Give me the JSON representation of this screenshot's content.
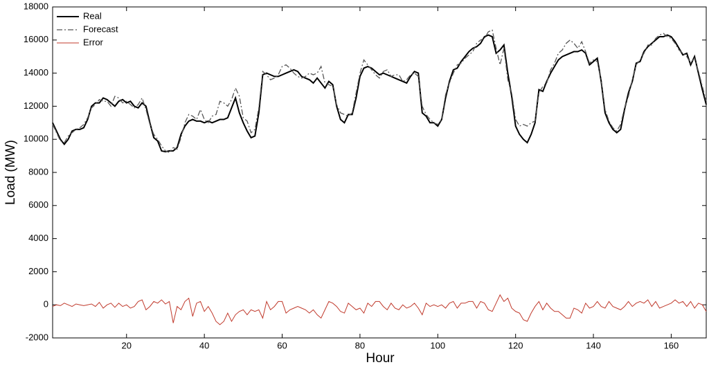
{
  "chart_data": {
    "type": "line",
    "x_label": "Hour",
    "y_label": "Load (MW)",
    "xlim": [
      1,
      169
    ],
    "xticks": [
      20,
      40,
      60,
      80,
      100,
      120,
      140,
      160
    ],
    "ylim": [
      -2000,
      18000
    ],
    "yticks": [
      -2000,
      0,
      2000,
      4000,
      6000,
      8000,
      10000,
      12000,
      14000,
      16000,
      18000
    ],
    "grid": false,
    "legend": "upper left",
    "x": [
      1,
      2,
      3,
      4,
      5,
      6,
      7,
      8,
      9,
      10,
      11,
      12,
      13,
      14,
      15,
      16,
      17,
      18,
      19,
      20,
      21,
      22,
      23,
      24,
      25,
      26,
      27,
      28,
      29,
      30,
      31,
      32,
      33,
      34,
      35,
      36,
      37,
      38,
      39,
      40,
      41,
      42,
      43,
      44,
      45,
      46,
      47,
      48,
      49,
      50,
      51,
      52,
      53,
      54,
      55,
      56,
      57,
      58,
      59,
      60,
      61,
      62,
      63,
      64,
      65,
      66,
      67,
      68,
      69,
      70,
      71,
      72,
      73,
      74,
      75,
      76,
      77,
      78,
      79,
      80,
      81,
      82,
      83,
      84,
      85,
      86,
      87,
      88,
      89,
      90,
      91,
      92,
      93,
      94,
      95,
      96,
      97,
      98,
      99,
      100,
      101,
      102,
      103,
      104,
      105,
      106,
      107,
      108,
      109,
      110,
      111,
      112,
      113,
      114,
      115,
      116,
      117,
      118,
      119,
      120,
      121,
      122,
      123,
      124,
      125,
      126,
      127,
      128,
      129,
      130,
      131,
      132,
      133,
      134,
      135,
      136,
      137,
      138,
      139,
      140,
      141,
      142,
      143,
      144,
      145,
      146,
      147,
      148,
      149,
      150,
      151,
      152,
      153,
      154,
      155,
      156,
      157,
      158,
      159,
      160,
      161,
      162,
      163,
      164,
      165,
      166,
      167,
      168,
      169
    ],
    "series": [
      {
        "name": "Real",
        "color": "#000000",
        "line_style": "solid",
        "values": [
          11000,
          10500,
          10000,
          9700,
          10000,
          10500,
          10600,
          10600,
          10700,
          11200,
          12000,
          12200,
          12200,
          12500,
          12400,
          12200,
          12000,
          12300,
          12400,
          12200,
          12300,
          12000,
          11900,
          12200,
          12000,
          11000,
          10100,
          9900,
          9300,
          9250,
          9300,
          9300,
          9500,
          10300,
          10800,
          11100,
          11200,
          11100,
          11100,
          11000,
          11100,
          11000,
          11100,
          11200,
          11200,
          11300,
          11900,
          12500,
          11600,
          11000,
          10500,
          10100,
          10200,
          11600,
          13900,
          14000,
          13900,
          13800,
          13800,
          13900,
          14000,
          14100,
          14200,
          14100,
          13800,
          13700,
          13600,
          13400,
          13700,
          13400,
          13100,
          13500,
          13300,
          12000,
          11200,
          11000,
          11500,
          11500,
          12500,
          13800,
          14300,
          14400,
          14300,
          14100,
          13900,
          14000,
          13900,
          13800,
          13700,
          13600,
          13500,
          13400,
          13800,
          14100,
          14000,
          11600,
          11400,
          11000,
          11000,
          10800,
          11200,
          12500,
          13500,
          14200,
          14300,
          14700,
          15000,
          15300,
          15500,
          15600,
          15800,
          16200,
          16300,
          16200,
          15200,
          15400,
          15700,
          14000,
          12600,
          10800,
          10300,
          10000,
          9800,
          10300,
          11000,
          13000,
          12900,
          13500,
          14000,
          14400,
          14800,
          15000,
          15100,
          15200,
          15300,
          15300,
          15400,
          15200,
          14500,
          14700,
          14900,
          13500,
          11600,
          11000,
          10600,
          10400,
          10600,
          11800,
          12800,
          13500,
          14600,
          14700,
          15300,
          15600,
          15800,
          16000,
          16200,
          16200,
          16300,
          16200,
          15900,
          15500,
          15100,
          15200,
          14500,
          15000,
          14000,
          13000,
          12100
        ]
      },
      {
        "name": "Forecast",
        "color": "#555555",
        "line_style": "dashdot",
        "values": [
          10900,
          10400,
          9900,
          9800,
          10200,
          10400,
          10600,
          10700,
          10900,
          11300,
          11900,
          12100,
          12400,
          12300,
          12300,
          12000,
          12600,
          12500,
          12200,
          12300,
          12100,
          11900,
          12100,
          12500,
          11800,
          10900,
          10300,
          10000,
          9600,
          9300,
          9200,
          9500,
          9400,
          10100,
          11000,
          11500,
          11400,
          11200,
          11800,
          11200,
          11000,
          11400,
          11500,
          12300,
          12200,
          12000,
          12400,
          13100,
          12600,
          11300,
          11100,
          10400,
          10600,
          11900,
          14100,
          13900,
          13600,
          13700,
          13900,
          14400,
          14500,
          14300,
          14000,
          13800,
          13700,
          13800,
          14000,
          13900,
          14000,
          14400,
          13400,
          13300,
          13200,
          12100,
          11600,
          11500,
          11400,
          11600,
          12800,
          14000,
          14800,
          14500,
          14200,
          13900,
          13700,
          14100,
          14200,
          13800,
          13900,
          13900,
          13500,
          13600,
          13900,
          14000,
          13800,
          12000,
          11500,
          11200,
          11000,
          10900,
          11200,
          12700,
          13400,
          14000,
          14500,
          14600,
          14900,
          15100,
          15300,
          15800,
          16000,
          16100,
          16500,
          16600,
          15500,
          14500,
          15500,
          13600,
          12800,
          11200,
          10800,
          10900,
          10800,
          11000,
          11100,
          12800,
          13200,
          13400,
          14200,
          14600,
          15200,
          15400,
          15800,
          16000,
          15800,
          15500,
          15900,
          15300,
          14600,
          14800,
          14700,
          13600,
          11800,
          11100,
          10700,
          10500,
          10900,
          11900,
          12600,
          13600,
          14500,
          14800,
          15200,
          15700,
          15700,
          16100,
          16300,
          16400,
          16200,
          16100,
          15800,
          15400,
          15200,
          15000,
          14600,
          14900,
          14100,
          13200,
          12300
        ]
      },
      {
        "name": "Error",
        "color": "#c0392b",
        "line_style": "solid",
        "values": [
          -100,
          0,
          -50,
          100,
          0,
          -100,
          50,
          0,
          -50,
          0,
          50,
          -100,
          150,
          -200,
          0,
          100,
          -150,
          100,
          -100,
          0,
          -200,
          -100,
          200,
          300,
          -300,
          -100,
          200,
          100,
          300,
          50,
          200,
          -1100,
          -100,
          -300,
          200,
          400,
          -700,
          100,
          200,
          -400,
          -100,
          -500,
          -1000,
          -1200,
          -1000,
          -500,
          -1000,
          -600,
          -400,
          -300,
          -600,
          -300,
          -400,
          -300,
          -800,
          200,
          -300,
          -100,
          200,
          200,
          -500,
          -300,
          -200,
          -100,
          -200,
          -300,
          -500,
          -300,
          -600,
          -800,
          -300,
          200,
          100,
          -100,
          -400,
          -500,
          100,
          -100,
          -300,
          -200,
          -500,
          100,
          -100,
          200,
          200,
          -100,
          -300,
          100,
          -200,
          -300,
          0,
          -200,
          -100,
          100,
          -200,
          -600,
          100,
          -100,
          0,
          -100,
          0,
          -200,
          100,
          200,
          -200,
          100,
          100,
          200,
          200,
          -200,
          200,
          100,
          -300,
          -400,
          100,
          600,
          200,
          400,
          -200,
          -400,
          -500,
          -900,
          -1000,
          -500,
          -100,
          200,
          -300,
          100,
          -200,
          -400,
          -400,
          -600,
          -800,
          -800,
          -200,
          -300,
          -500,
          100,
          -200,
          -100,
          200,
          -100,
          -200,
          200,
          -100,
          -200,
          -300,
          -100,
          200,
          -100,
          100,
          200,
          100,
          300,
          -100,
          200,
          -200,
          -100,
          0,
          100,
          300,
          100,
          200,
          -100,
          200,
          -200,
          100,
          0,
          -400
        ]
      }
    ]
  }
}
